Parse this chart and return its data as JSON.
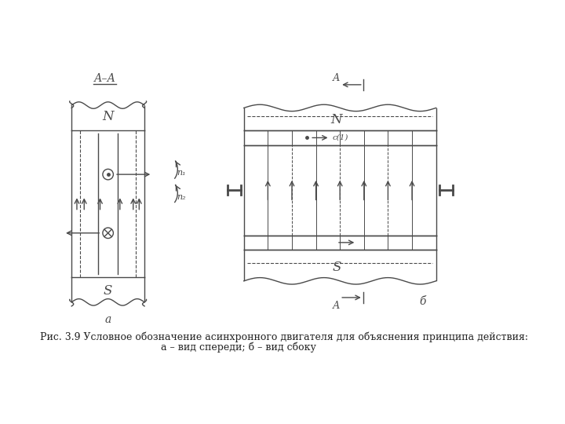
{
  "bg_color": "#ffffff",
  "line_color": "#4a4a4a",
  "title_line1": "Рис. 3.9 Условное обозначение асинхронного двигателя для объяснения принципа действия:",
  "title_line2": "а – вид спереди; б – вид сбоку",
  "label_a": "а",
  "label_b": "б",
  "label_N_left": "N",
  "label_S_left": "S",
  "label_N_right": "N",
  "label_S_right": "S",
  "label_AA": "А–А",
  "label_A_top": "А",
  "label_A_bot": "А",
  "label_c1": "c(1)",
  "label_n1": "n₁",
  "label_n2": "n₂"
}
